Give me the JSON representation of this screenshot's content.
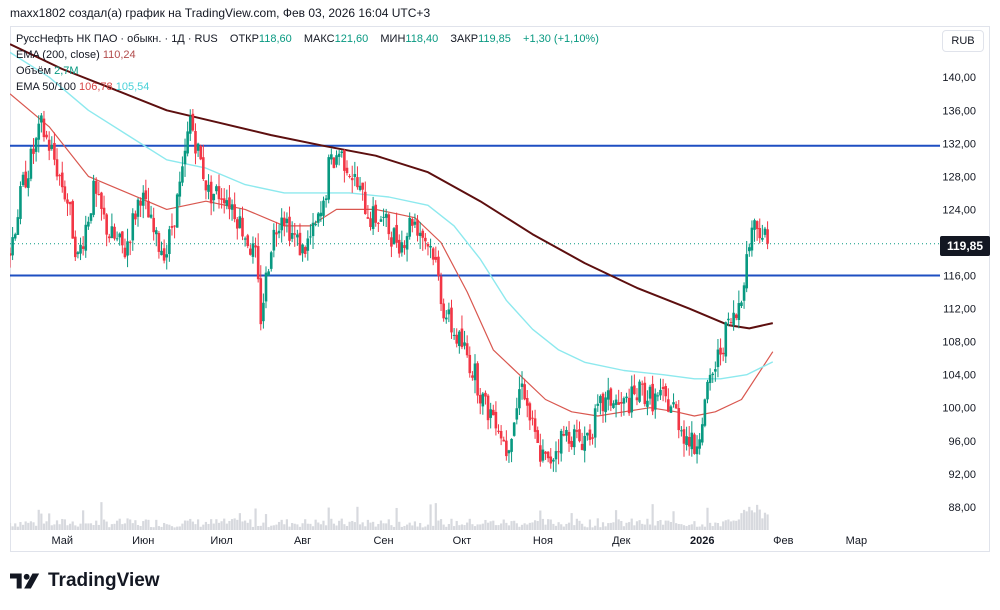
{
  "header": {
    "caption": "maxx1802 создал(а) график на TradingView.com, Фев 03, 2026 16:04 UTC+3"
  },
  "legend": {
    "symbol": "РуссНефть НК ПАО · обыкн. · 1Д · RUS",
    "ohlc": [
      {
        "label": "ОТКР",
        "value": "118,60"
      },
      {
        "label": "МАКС",
        "value": "121,60"
      },
      {
        "label": "МИН",
        "value": "118,40"
      },
      {
        "label": "ЗАКР",
        "value": "119,85"
      }
    ],
    "change": "+1,30 (+1,10%)",
    "ema200_label": "EMA (200, close)",
    "ema200_value": "110,24",
    "volume_label": "Объём",
    "volume_value": "2,7M",
    "ema50_100_label": "EMA 50/100",
    "ema50_value": "106,78",
    "ema100_value": "105,54"
  },
  "currency_button": "RUB",
  "last_price": "119,85",
  "footer": {
    "brand": "TradingView"
  },
  "colors": {
    "up": "#089981",
    "down": "#f23645",
    "ema200": "#5d0f0f",
    "ema50": "#d9574f",
    "ema100": "#8de9ee",
    "hline": "#1e4fc2",
    "volume": "#d7d9de"
  },
  "chart_data": {
    "type": "candlestick",
    "y_ticks": [
      "140,00",
      "136,00",
      "132,00",
      "128,00",
      "124,00",
      "120,00",
      "116,00",
      "112,00",
      "108,00",
      "104,00",
      "100,00",
      "96,00",
      "92,00",
      "88,00"
    ],
    "y_tick_values": [
      140,
      136,
      132,
      128,
      124,
      120,
      116,
      112,
      108,
      104,
      100,
      96,
      92,
      88
    ],
    "x_ticks": [
      {
        "label": "Май",
        "day": 20
      },
      {
        "label": "Июн",
        "day": 51
      },
      {
        "label": "Июл",
        "day": 81
      },
      {
        "label": "Авг",
        "day": 112
      },
      {
        "label": "Сен",
        "day": 143
      },
      {
        "label": "Окт",
        "day": 173
      },
      {
        "label": "Ноя",
        "day": 204
      },
      {
        "label": "Дек",
        "day": 234
      },
      {
        "label": "2026",
        "day": 265
      },
      {
        "label": "Фев",
        "day": 296
      },
      {
        "label": "Мар",
        "day": 324
      }
    ],
    "x_range": [
      0,
      356
    ],
    "ylim": [
      85.2,
      146.2
    ],
    "horizontal_lines": [
      131.7,
      116.0
    ],
    "last_close": 119.85,
    "price_series": [
      [
        0,
        119
      ],
      [
        5,
        127
      ],
      [
        12,
        134
      ],
      [
        16,
        131
      ],
      [
        22,
        125
      ],
      [
        26,
        118
      ],
      [
        32,
        126
      ],
      [
        38,
        121
      ],
      [
        44,
        119
      ],
      [
        50,
        126
      ],
      [
        56,
        120
      ],
      [
        60,
        119
      ],
      [
        66,
        128
      ],
      [
        69,
        135
      ],
      [
        72,
        131
      ],
      [
        76,
        126
      ],
      [
        82,
        126
      ],
      [
        86,
        124
      ],
      [
        90,
        121
      ],
      [
        94,
        118
      ],
      [
        96,
        111
      ],
      [
        100,
        120
      ],
      [
        104,
        124
      ],
      [
        108,
        121
      ],
      [
        112,
        119
      ],
      [
        116,
        121
      ],
      [
        120,
        124
      ],
      [
        122,
        129
      ],
      [
        126,
        131
      ],
      [
        130,
        129
      ],
      [
        134,
        126
      ],
      [
        138,
        123
      ],
      [
        142,
        123
      ],
      [
        146,
        121
      ],
      [
        150,
        120
      ],
      [
        154,
        123
      ],
      [
        158,
        121
      ],
      [
        162,
        119
      ],
      [
        166,
        112
      ],
      [
        170,
        109
      ],
      [
        174,
        107
      ],
      [
        178,
        104
      ],
      [
        182,
        100
      ],
      [
        186,
        99
      ],
      [
        190,
        95
      ],
      [
        194,
        100
      ],
      [
        196,
        104
      ],
      [
        198,
        100
      ],
      [
        202,
        95
      ],
      [
        206,
        93
      ],
      [
        210,
        96
      ],
      [
        214,
        97
      ],
      [
        218,
        96
      ],
      [
        222,
        97
      ],
      [
        226,
        100
      ],
      [
        230,
        101
      ],
      [
        234,
        100
      ],
      [
        238,
        101
      ],
      [
        242,
        102
      ],
      [
        246,
        101
      ],
      [
        250,
        101
      ],
      [
        254,
        100
      ],
      [
        258,
        97
      ],
      [
        262,
        95
      ],
      [
        265,
        99
      ],
      [
        268,
        103
      ],
      [
        272,
        107
      ],
      [
        275,
        110
      ],
      [
        278,
        111
      ],
      [
        281,
        116
      ],
      [
        284,
        122
      ],
      [
        287,
        122
      ],
      [
        290,
        119.85
      ]
    ],
    "series": [
      {
        "name": "EMA (200, close)",
        "values": [
          [
            0,
            144
          ],
          [
            20,
            141
          ],
          [
            40,
            138.5
          ],
          [
            60,
            136
          ],
          [
            80,
            134.5
          ],
          [
            100,
            133
          ],
          [
            120,
            131.7
          ],
          [
            140,
            130.5
          ],
          [
            160,
            128.5
          ],
          [
            180,
            125
          ],
          [
            200,
            121
          ],
          [
            220,
            117.5
          ],
          [
            240,
            114.5
          ],
          [
            260,
            112
          ],
          [
            275,
            110
          ],
          [
            283,
            109.6
          ],
          [
            292,
            110.24
          ]
        ]
      },
      {
        "name": "EMA 50",
        "values": [
          [
            0,
            138
          ],
          [
            15,
            134
          ],
          [
            30,
            128
          ],
          [
            45,
            126
          ],
          [
            60,
            124
          ],
          [
            75,
            125
          ],
          [
            90,
            124
          ],
          [
            105,
            122
          ],
          [
            115,
            122
          ],
          [
            125,
            124
          ],
          [
            140,
            124
          ],
          [
            155,
            123
          ],
          [
            165,
            120
          ],
          [
            175,
            114
          ],
          [
            185,
            107
          ],
          [
            195,
            104
          ],
          [
            205,
            101
          ],
          [
            215,
            99.5
          ],
          [
            225,
            99
          ],
          [
            235,
            99.5
          ],
          [
            245,
            100
          ],
          [
            255,
            99.5
          ],
          [
            262,
            99
          ],
          [
            270,
            99.5
          ],
          [
            280,
            101
          ],
          [
            292,
            106.78
          ]
        ]
      },
      {
        "name": "EMA 100",
        "values": [
          [
            0,
            143
          ],
          [
            15,
            140
          ],
          [
            30,
            136
          ],
          [
            45,
            133
          ],
          [
            60,
            130
          ],
          [
            75,
            129
          ],
          [
            90,
            127
          ],
          [
            105,
            126
          ],
          [
            115,
            126
          ],
          [
            130,
            126
          ],
          [
            145,
            125.5
          ],
          [
            160,
            124.5
          ],
          [
            170,
            122
          ],
          [
            180,
            118
          ],
          [
            190,
            113
          ],
          [
            200,
            109.5
          ],
          [
            210,
            107
          ],
          [
            220,
            105.5
          ],
          [
            235,
            104.5
          ],
          [
            250,
            104
          ],
          [
            262,
            103.5
          ],
          [
            272,
            103.5
          ],
          [
            282,
            104
          ],
          [
            292,
            105.54
          ]
        ]
      }
    ]
  }
}
